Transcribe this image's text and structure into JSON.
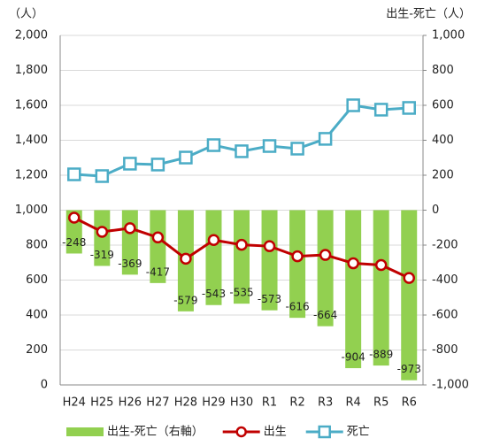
{
  "chart_data": {
    "type": "bar-line",
    "y_label": "（人）",
    "y2_label": "出生-死亡（人）",
    "categories": [
      "H24",
      "H25",
      "H26",
      "H27",
      "H28",
      "H29",
      "H30",
      "R1",
      "R2",
      "R3",
      "R4",
      "R5",
      "R6"
    ],
    "series": [
      {
        "name": "出生-死亡（右軸）",
        "type": "bar",
        "axis": "y2",
        "color": "#92d050",
        "values": [
          -248,
          -319,
          -369,
          -417,
          -579,
          -543,
          -535,
          -573,
          -616,
          -664,
          -904,
          -889,
          -973
        ]
      },
      {
        "name": "出生",
        "type": "line",
        "axis": "y",
        "color": "#c00000",
        "values": [
          957,
          876,
          897,
          844,
          722,
          829,
          802,
          794,
          736,
          744,
          696,
          686,
          612
        ]
      },
      {
        "name": "死亡",
        "type": "line",
        "axis": "y",
        "color": "#4bacc6",
        "values": [
          1205,
          1195,
          1266,
          1261,
          1301,
          1372,
          1337,
          1367,
          1352,
          1408,
          1600,
          1575,
          1585
        ]
      }
    ],
    "ylim": [
      0,
      2000
    ],
    "yticks": [
      0,
      200,
      400,
      600,
      800,
      {
        "value": 1000,
        "label": "1,000"
      },
      {
        "value": 1200,
        "label": "1,200"
      },
      {
        "value": 1400,
        "label": "1,400"
      },
      {
        "value": 1600,
        "label": "1,600"
      },
      {
        "value": 1800,
        "label": "1,800"
      },
      {
        "value": 2000,
        "label": "2,000"
      }
    ],
    "y2lim": [
      -1000,
      1000
    ],
    "y2ticks": [
      {
        "value": -1000,
        "label": "-1,000"
      },
      -800,
      -600,
      -400,
      -200,
      0,
      200,
      400,
      600,
      800,
      {
        "value": 1000,
        "label": "1,000"
      }
    ],
    "grid": true,
    "legend": "bottom"
  }
}
